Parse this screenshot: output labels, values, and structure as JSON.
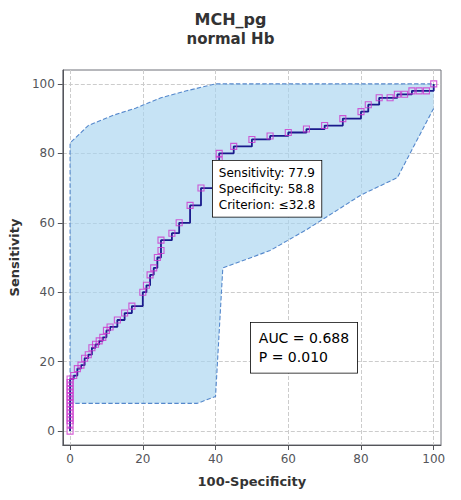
{
  "chart_data": {
    "type": "line",
    "title": "MCH_pg",
    "subtitle": "normal Hb",
    "x_label": "100-Specificity",
    "y_label": "Sensitivity",
    "xlim": [
      -2,
      102
    ],
    "ylim": [
      -4,
      104
    ],
    "xticks": [
      0,
      20,
      40,
      60,
      80,
      100
    ],
    "yticks": [
      0,
      20,
      40,
      60,
      80,
      100
    ],
    "grid": true,
    "annotations": [
      [
        "Sensitivity: 77.9",
        "Specificity: 58.8",
        "Criterion: ≤32.8"
      ],
      [
        "AUC = 0.688",
        "P = 0.010"
      ]
    ],
    "series": [
      {
        "type": "area",
        "color": "#a8d4f0",
        "x": [
          0,
          0,
          5,
          12,
          18,
          25,
          32,
          40,
          55,
          70,
          85,
          95,
          100,
          100,
          90,
          80,
          65,
          55,
          42,
          40,
          35,
          30,
          25,
          20,
          15,
          10,
          5,
          0,
          0
        ],
        "values": [
          15,
          83,
          88,
          91,
          93,
          96,
          98,
          100,
          100,
          100,
          100,
          100,
          100,
          93,
          73,
          68,
          58,
          52,
          47,
          10,
          8,
          8,
          8,
          8,
          8,
          8,
          8,
          8,
          0
        ]
      },
      {
        "type": "line",
        "line_style": "dashed",
        "color": "#5588cc",
        "x": [
          0,
          0,
          5,
          12,
          18,
          25,
          32,
          40,
          55,
          70,
          85,
          95,
          100
        ],
        "values": [
          15,
          83,
          88,
          91,
          93,
          96,
          98,
          100,
          100,
          100,
          100,
          100,
          100
        ]
      },
      {
        "type": "line",
        "line_style": "dashed",
        "color": "#5588cc",
        "x": [
          0,
          0,
          5,
          10,
          15,
          20,
          25,
          30,
          35,
          40,
          42,
          55,
          65,
          80,
          90,
          100
        ],
        "values": [
          0,
          8,
          8,
          8,
          8,
          8,
          8,
          8,
          8,
          10,
          47,
          52,
          58,
          68,
          73,
          93
        ]
      },
      {
        "type": "line",
        "line_style": "step",
        "color": "#1a1a8c",
        "x": [
          0,
          0,
          0,
          0,
          0,
          0,
          0,
          0,
          0,
          0,
          0,
          0,
          0,
          0,
          0,
          1,
          2,
          3,
          4,
          5,
          6,
          7,
          8,
          9,
          10,
          11,
          13,
          15,
          17,
          20,
          21,
          22,
          23,
          24,
          25,
          25,
          28,
          30,
          33,
          36,
          41,
          41,
          45,
          50,
          55,
          60,
          65,
          70,
          75,
          80,
          82,
          85,
          88,
          90,
          92,
          94,
          96,
          98,
          100
        ],
        "values": [
          0,
          2,
          3,
          4,
          5,
          6,
          7,
          8,
          9,
          10,
          11,
          12,
          13,
          14,
          15,
          16,
          18,
          19,
          21,
          22,
          24,
          25,
          26,
          27,
          29,
          30,
          32,
          34,
          36,
          40,
          42,
          45,
          47,
          50,
          52,
          55,
          57,
          60,
          65,
          70,
          78,
          80,
          82,
          84,
          85,
          86,
          87,
          88,
          90,
          92,
          94,
          96,
          96,
          97,
          97,
          98,
          98,
          98,
          100
        ]
      },
      {
        "type": "scatter",
        "marker": "square",
        "color": "#cc33cc",
        "x": [
          0,
          0,
          0,
          0,
          0,
          0,
          0,
          0,
          0,
          0,
          0,
          0,
          0,
          0,
          0,
          1,
          2,
          3,
          4,
          5,
          6,
          7,
          8,
          9,
          10,
          11,
          13,
          15,
          17,
          20,
          21,
          22,
          23,
          24,
          25,
          25,
          28,
          30,
          33,
          36,
          41,
          41,
          45,
          50,
          55,
          60,
          65,
          70,
          75,
          80,
          82,
          85,
          88,
          90,
          92,
          94,
          96,
          98,
          100
        ],
        "values": [
          0,
          2,
          3,
          4,
          5,
          6,
          7,
          8,
          9,
          10,
          11,
          12,
          13,
          14,
          15,
          16,
          18,
          19,
          21,
          22,
          24,
          25,
          26,
          27,
          29,
          30,
          32,
          34,
          36,
          40,
          42,
          45,
          47,
          50,
          52,
          55,
          57,
          60,
          65,
          70,
          78,
          80,
          82,
          84,
          85,
          86,
          87,
          88,
          90,
          92,
          94,
          96,
          96,
          97,
          97,
          98,
          98,
          98,
          100
        ]
      }
    ]
  }
}
